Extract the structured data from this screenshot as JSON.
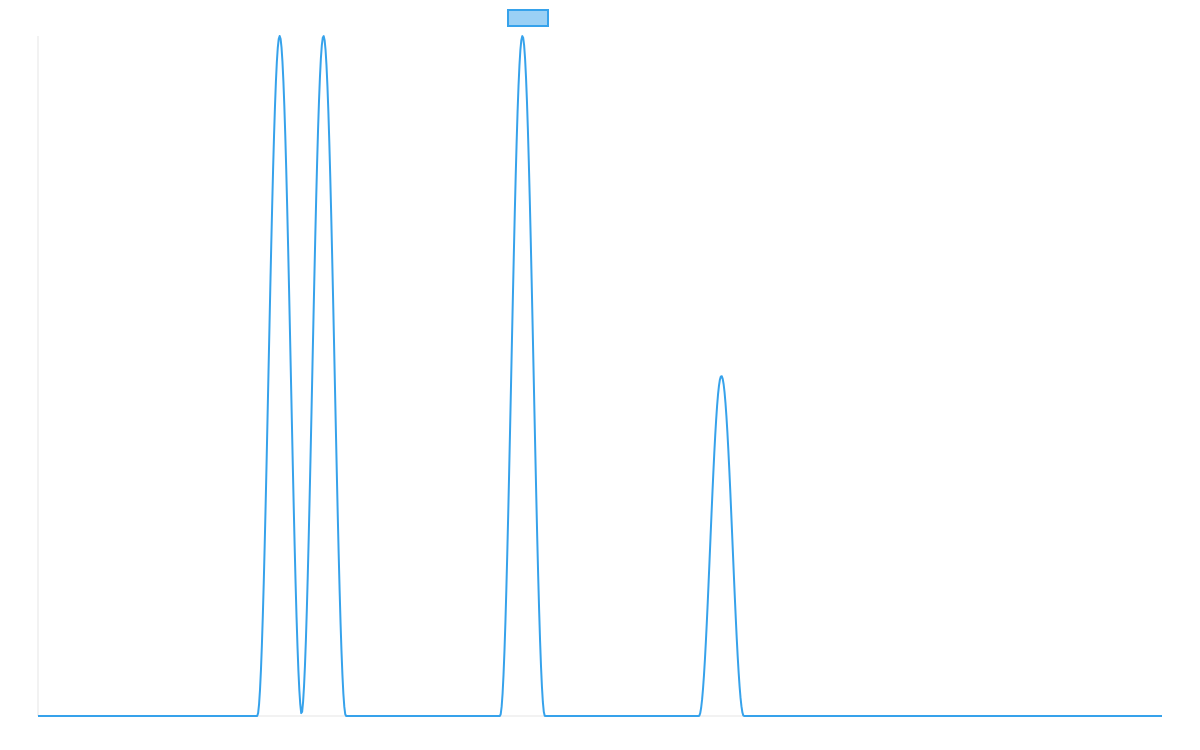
{
  "colors": {
    "line": "#36a2eb",
    "legend_fill": "#9ad0f5",
    "axis": "#e5e5e5"
  },
  "chart_data": {
    "type": "line",
    "title": "",
    "xlabel": "",
    "ylabel": "",
    "legend": {
      "placement": "top-center",
      "label": ""
    },
    "grid": false,
    "x_range": [
      0,
      100
    ],
    "y_range": [
      0,
      1
    ],
    "series": [
      {
        "peaks": [
          {
            "center": 21.5,
            "height": 1.0,
            "half_width": 2.0
          },
          {
            "center": 25.4,
            "height": 1.0,
            "half_width": 2.0
          },
          {
            "center": 43.1,
            "height": 1.0,
            "half_width": 2.0
          },
          {
            "center": 60.8,
            "height": 0.5,
            "half_width": 2.0
          }
        ]
      }
    ]
  }
}
